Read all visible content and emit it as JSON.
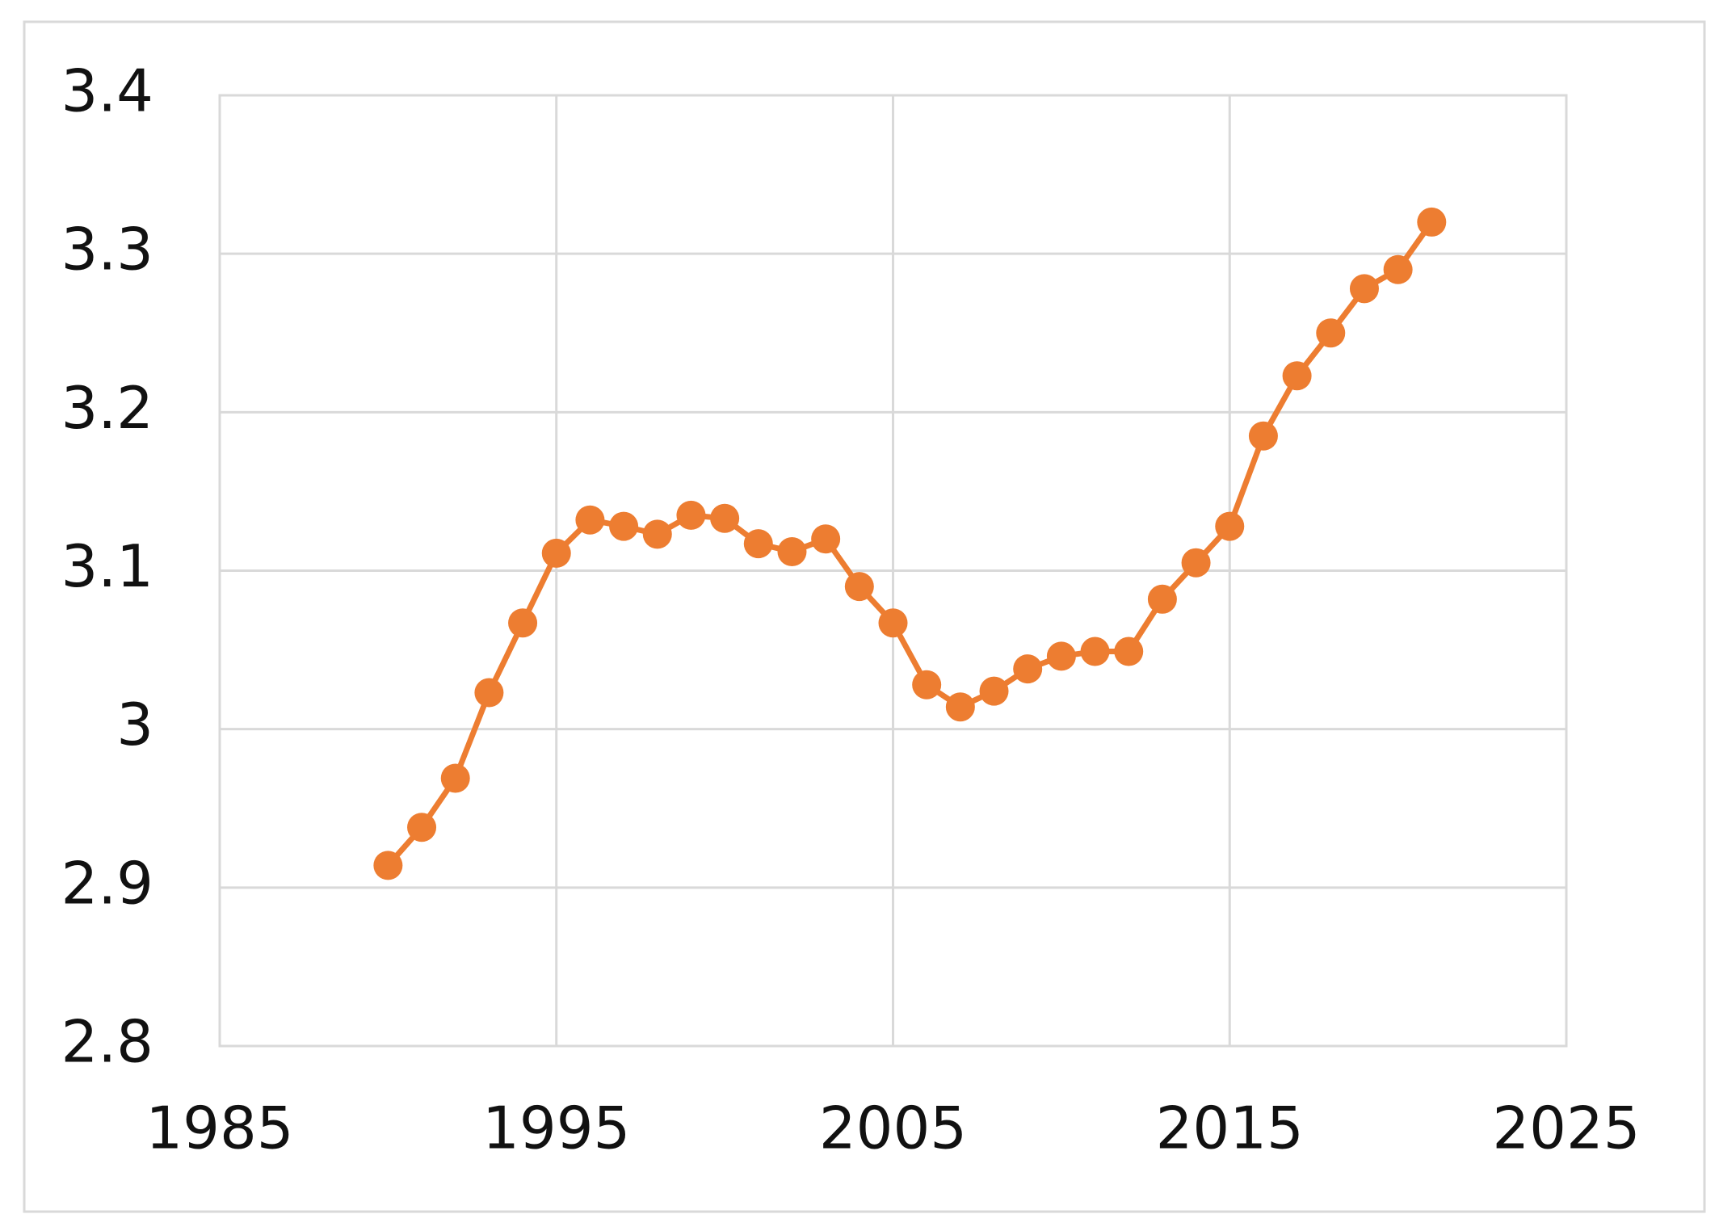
{
  "chart_data": {
    "type": "line",
    "x": [
      1990,
      1991,
      1992,
      1993,
      1994,
      1995,
      1996,
      1997,
      1998,
      1999,
      2000,
      2001,
      2002,
      2003,
      2004,
      2005,
      2006,
      2007,
      2008,
      2009,
      2010,
      2011,
      2012,
      2013,
      2014,
      2015,
      2016,
      2017,
      2018,
      2019,
      2020,
      2021
    ],
    "values": [
      2.914,
      2.938,
      2.969,
      3.023,
      3.067,
      3.111,
      3.132,
      3.128,
      3.123,
      3.135,
      3.133,
      3.117,
      3.112,
      3.12,
      3.09,
      3.067,
      3.028,
      3.014,
      3.024,
      3.038,
      3.046,
      3.049,
      3.049,
      3.082,
      3.105,
      3.128,
      3.185,
      3.223,
      3.25,
      3.278,
      3.29,
      3.32
    ],
    "color": "#ed7d31",
    "xlim": [
      1985,
      2025
    ],
    "xticks": [
      1985,
      1995,
      2005,
      2015,
      2025
    ],
    "ylim": [
      2.8,
      3.4
    ],
    "yticks": [
      2.8,
      2.9,
      3,
      3.1,
      3.2,
      3.3,
      3.4
    ],
    "grid": true
  }
}
